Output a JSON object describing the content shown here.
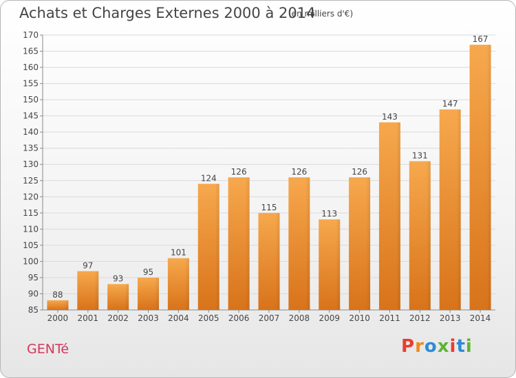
{
  "header": {
    "title": "Achats et Charges Externes 2000 à 2014",
    "unit": "(en milliers d'€)"
  },
  "footer": {
    "commune": "GENTé",
    "brand": "Proxiti",
    "brand_colors": [
      "#e83e2e",
      "#f08a1c",
      "#2e8bd6",
      "#5cb532",
      "#e83e2e",
      "#2e8bd6",
      "#5cb532"
    ]
  },
  "colors": {
    "bar_light": "#f7a84d",
    "bar_dark": "#d8731a",
    "grid": "#d9d9d9",
    "axis": "#888888",
    "text": "#444444",
    "commune": "#d4365a"
  },
  "chart_data": {
    "type": "bar",
    "categories": [
      "2000",
      "2001",
      "2002",
      "2003",
      "2004",
      "2005",
      "2006",
      "2007",
      "2008",
      "2009",
      "2010",
      "2011",
      "2012",
      "2013",
      "2014"
    ],
    "values": [
      88,
      97,
      93,
      95,
      101,
      124,
      126,
      115,
      126,
      113,
      126,
      143,
      131,
      147,
      167
    ],
    "title": "Achats et Charges Externes 2000 à 2014",
    "subtitle": "(en milliers d'€)",
    "xlabel": "",
    "ylabel": "",
    "ylim": [
      85,
      170
    ],
    "yticks": [
      85,
      90,
      95,
      100,
      105,
      110,
      115,
      120,
      125,
      130,
      135,
      140,
      145,
      150,
      155,
      160,
      165,
      170
    ],
    "grid": true,
    "legend": "none"
  }
}
